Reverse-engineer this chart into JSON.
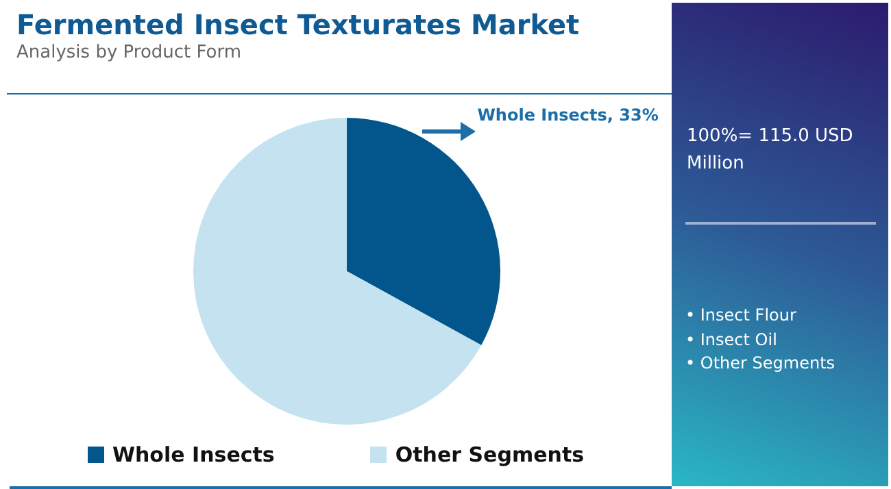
{
  "chart_data": {
    "type": "pie",
    "title": "Fermented Insect Texturates Market",
    "subtitle": "Analysis by Product Form",
    "categories": [
      "Whole Insects",
      "Other Segments"
    ],
    "values": [
      33,
      67
    ],
    "colors": [
      "#03568c",
      "#c5e2f1"
    ],
    "value_labels": [
      "Whole Insects, 33%",
      null
    ],
    "legend": "bottom",
    "annotations": [
      "100%= 115.0 USD Million",
      "• Insect Flour",
      "• Insect Oil",
      "• Other Segments"
    ]
  }
}
